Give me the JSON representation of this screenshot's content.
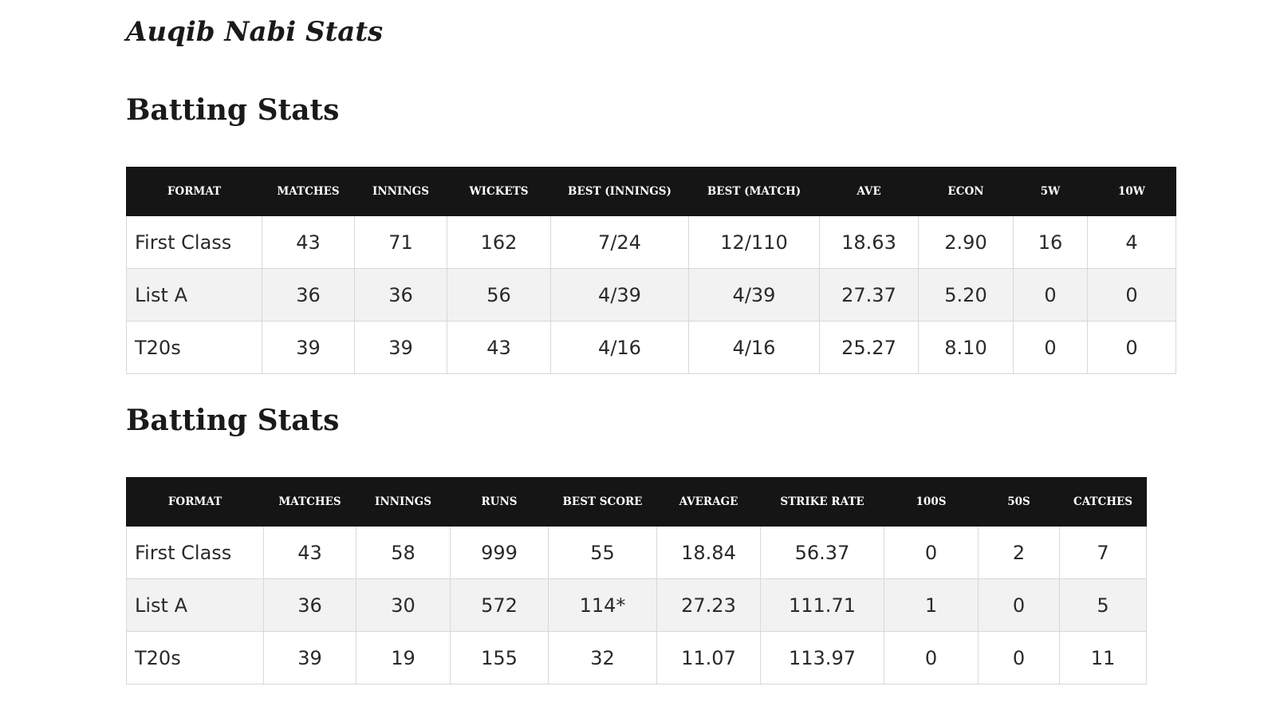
{
  "title": "Auqib Nabi Stats",
  "sections": [
    {
      "heading": "Batting Stats",
      "table": {
        "header": [
          "FORMAT",
          "MATCHES",
          "INNINGS",
          "WICKETS",
          "BEST (INNINGS)",
          "BEST (MATCH)",
          "AVE",
          "ECON",
          "5W",
          "10W"
        ],
        "rows": [
          [
            "First Class",
            "43",
            "71",
            "162",
            "7/24",
            "12/110",
            "18.63",
            "2.90",
            "16",
            "4"
          ],
          [
            "List A",
            "36",
            "36",
            "56",
            "4/39",
            "4/39",
            "27.37",
            "5.20",
            "0",
            "0"
          ],
          [
            "T20s",
            "39",
            "39",
            "43",
            "4/16",
            "4/16",
            "25.27",
            "8.10",
            "0",
            "0"
          ]
        ]
      }
    },
    {
      "heading": "Batting Stats",
      "table": {
        "header": [
          "FORMAT",
          "MATCHES",
          "INNINGS",
          "RUNS",
          "BEST SCORE",
          "AVERAGE",
          "STRIKE RATE",
          "100S",
          "50S",
          "CATCHES"
        ],
        "rows": [
          [
            "First Class",
            "43",
            "58",
            "999",
            "55",
            "18.84",
            "56.37",
            "0",
            "2",
            "7"
          ],
          [
            "List A",
            "36",
            "30",
            "572",
            "114*",
            "27.23",
            "111.71",
            "1",
            "0",
            "5"
          ],
          [
            "T20s",
            "39",
            "19",
            "155",
            "32",
            "11.07",
            "113.97",
            "0",
            "0",
            "11"
          ]
        ]
      }
    }
  ]
}
